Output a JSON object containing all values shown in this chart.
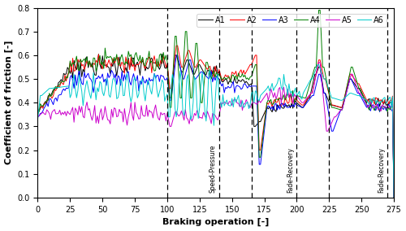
{
  "title": "",
  "xlabel": "Braking operation [-]",
  "ylabel": "Coefficient of friction [-]",
  "xlim": [
    0,
    275
  ],
  "ylim": [
    0.0,
    0.8
  ],
  "yticks": [
    0.0,
    0.1,
    0.2,
    0.3,
    0.4,
    0.5,
    0.6,
    0.7,
    0.8
  ],
  "xticks": [
    0,
    25,
    50,
    75,
    100,
    125,
    150,
    175,
    200,
    225,
    250,
    275
  ],
  "vlines": [
    100,
    140,
    165,
    200,
    225,
    270
  ],
  "series_colors": [
    "#000000",
    "#ff0000",
    "#0000ff",
    "#008000",
    "#cc00cc",
    "#00cccc"
  ],
  "series_names": [
    "A1",
    "A2",
    "A3",
    "A4",
    "A5",
    "A6"
  ],
  "figsize": [
    5.0,
    2.84
  ],
  "dpi": 100
}
